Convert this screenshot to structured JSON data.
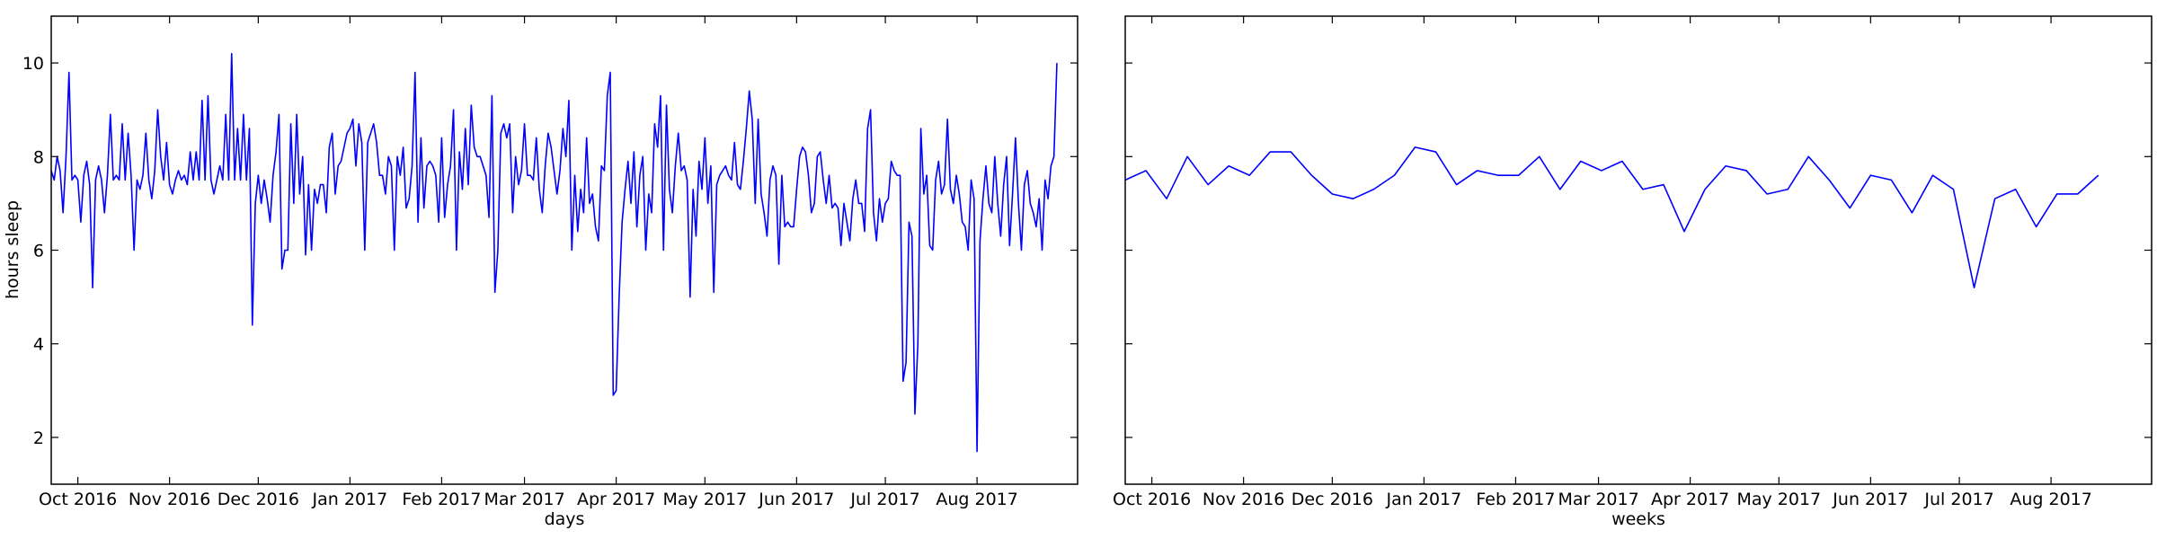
{
  "chart_data": [
    {
      "type": "line",
      "title": "",
      "xlabel": "days",
      "ylabel": "hours sleep",
      "ylim": [
        1,
        11
      ],
      "xlim": [
        "2016-09-22",
        "2017-09-04"
      ],
      "grid": false,
      "legend": "none",
      "color": "#0000ff",
      "x_tick_labels": [
        {
          "date": "2016-10-01",
          "label": "Oct 2016"
        },
        {
          "date": "2016-11-01",
          "label": "Nov 2016"
        },
        {
          "date": "2016-12-01",
          "label": "Dec 2016"
        },
        {
          "date": "2017-01-01",
          "label": "Jan 2017"
        },
        {
          "date": "2017-02-01",
          "label": "Feb 2017"
        },
        {
          "date": "2017-03-01",
          "label": "Mar 2017"
        },
        {
          "date": "2017-04-01",
          "label": "Apr 2017"
        },
        {
          "date": "2017-05-01",
          "label": "May 2017"
        },
        {
          "date": "2017-06-01",
          "label": "Jun 2017"
        },
        {
          "date": "2017-07-01",
          "label": "Jul 2017"
        },
        {
          "date": "2017-08-01",
          "label": "Aug 2017"
        }
      ],
      "y_ticks": [
        {
          "value": 2,
          "label": "2"
        },
        {
          "value": 4,
          "label": "4"
        },
        {
          "value": 6,
          "label": "6"
        },
        {
          "value": 8,
          "label": "8"
        },
        {
          "value": 10,
          "label": "10"
        }
      ],
      "series": [
        {
          "start": "2016-09-22",
          "values": [
            7.7,
            7.5,
            8.0,
            7.7,
            6.8,
            8.0,
            9.8,
            7.5,
            7.6,
            7.5,
            6.6,
            7.6,
            7.9,
            7.4,
            5.2,
            7.5,
            7.8,
            7.5,
            6.8,
            7.6,
            8.9,
            7.5,
            7.6,
            7.5,
            8.7,
            7.5,
            8.5,
            7.6,
            6.0,
            7.5,
            7.3,
            7.6,
            8.5,
            7.5,
            7.1,
            7.7,
            9.0,
            8.0,
            7.5,
            8.3,
            7.4,
            7.2,
            7.5,
            7.7,
            7.5,
            7.6,
            7.4,
            8.1,
            7.5,
            8.1,
            7.5,
            9.2,
            7.5,
            9.3,
            7.5,
            7.2,
            7.5,
            7.8,
            7.5,
            8.9,
            7.5,
            10.2,
            7.5,
            8.6,
            7.5,
            8.9,
            7.5,
            8.6,
            4.4,
            7.0,
            7.6,
            7.0,
            7.5,
            7.1,
            6.6,
            7.6,
            8.1,
            8.9,
            5.6,
            6.0,
            6.0,
            8.7,
            7.0,
            8.9,
            7.2,
            8.0,
            5.9,
            7.4,
            6.0,
            7.3,
            7.0,
            7.4,
            7.4,
            6.8,
            8.2,
            8.5,
            7.2,
            7.8,
            7.9,
            8.2,
            8.5,
            8.6,
            8.8,
            7.8,
            8.7,
            8.3,
            6.0,
            8.3,
            8.5,
            8.7,
            8.3,
            7.6,
            7.6,
            7.2,
            8.0,
            7.8,
            6.0,
            8.0,
            7.6,
            8.2,
            6.9,
            7.1,
            7.8,
            9.8,
            6.6,
            8.4,
            6.9,
            7.8,
            7.9,
            7.8,
            7.6,
            6.6,
            8.4,
            6.7,
            7.4,
            7.8,
            9.0,
            6.0,
            8.1,
            7.3,
            8.6,
            7.4,
            9.1,
            8.2,
            8.0,
            8.0,
            7.8,
            7.6,
            6.7,
            9.3,
            5.1,
            6.0,
            8.5,
            8.7,
            8.4,
            8.7,
            6.8,
            8.0,
            7.4,
            7.7,
            8.7,
            7.6,
            7.6,
            7.5,
            8.4,
            7.3,
            6.8,
            7.8,
            8.5,
            8.2,
            7.7,
            7.2,
            7.7,
            8.6,
            8.0,
            9.2,
            6.0,
            7.6,
            6.4,
            7.3,
            6.8,
            8.4,
            7.0,
            7.2,
            6.5,
            6.2,
            7.8,
            7.7,
            9.3,
            9.8,
            2.9,
            3.0,
            5.0,
            6.6,
            7.3,
            7.9,
            7.0,
            8.1,
            6.5,
            7.6,
            8.0,
            6.0,
            7.2,
            6.8,
            8.7,
            8.2,
            9.3,
            6.0,
            9.1,
            7.3,
            6.8,
            7.8,
            8.5,
            7.7,
            7.8,
            7.5,
            5.0,
            7.3,
            6.3,
            7.9,
            7.3,
            8.4,
            7.0,
            7.8,
            5.1,
            7.4,
            7.6,
            7.7,
            7.8,
            7.6,
            7.5,
            8.3,
            7.4,
            7.3,
            7.9,
            8.6,
            9.4,
            8.8,
            7.0,
            8.8,
            7.2,
            6.8,
            6.3,
            7.5,
            7.8,
            7.6,
            5.7,
            7.6,
            6.5,
            6.6,
            6.5,
            6.5,
            7.3,
            8.0,
            8.2,
            8.1,
            7.6,
            6.8,
            7.0,
            8.0,
            8.1,
            7.5,
            7.0,
            7.6,
            6.9,
            7.0,
            6.9,
            6.1,
            7.0,
            6.6,
            6.2,
            7.1,
            7.5,
            7.0,
            7.0,
            6.4,
            8.6,
            9.0,
            6.8,
            6.2,
            7.1,
            6.6,
            7.0,
            7.1,
            7.9,
            7.7,
            7.6,
            7.6,
            3.2,
            3.6,
            6.6,
            6.3,
            2.5,
            4.0,
            8.6,
            7.2,
            7.6,
            6.1,
            6.0,
            7.5,
            7.9,
            7.2,
            7.4,
            8.8,
            7.3,
            7.0,
            7.6,
            7.2,
            6.6,
            6.5,
            6.0,
            7.5,
            7.1,
            1.7,
            6.2,
            7.1,
            7.8,
            7.0,
            6.8,
            8.0,
            7.0,
            6.3,
            7.4,
            8.0,
            6.1,
            7.2,
            8.4,
            7.0,
            6.0,
            7.4,
            7.7,
            7.0,
            6.8,
            6.5,
            7.1,
            6.0,
            7.5,
            7.1,
            7.8,
            8.0,
            10.0
          ]
        }
      ]
    },
    {
      "type": "line",
      "title": "",
      "xlabel": "weeks",
      "ylabel": "",
      "ylim": [
        1,
        11
      ],
      "xlim": [
        "2016-09-22",
        "2017-09-04"
      ],
      "grid": false,
      "legend": "none",
      "color": "#0000ff",
      "x_tick_labels": [
        {
          "date": "2016-10-01",
          "label": "Oct 2016"
        },
        {
          "date": "2016-11-01",
          "label": "Nov 2016"
        },
        {
          "date": "2016-12-01",
          "label": "Dec 2016"
        },
        {
          "date": "2017-01-01",
          "label": "Jan 2017"
        },
        {
          "date": "2017-02-01",
          "label": "Feb 2017"
        },
        {
          "date": "2017-03-01",
          "label": "Mar 2017"
        },
        {
          "date": "2017-04-01",
          "label": "Apr 2017"
        },
        {
          "date": "2017-05-01",
          "label": "May 2017"
        },
        {
          "date": "2017-06-01",
          "label": "Jun 2017"
        },
        {
          "date": "2017-07-01",
          "label": "Jul 2017"
        },
        {
          "date": "2017-08-01",
          "label": "Aug 2017"
        }
      ],
      "y_ticks": [
        {
          "value": 2
        },
        {
          "value": 4
        },
        {
          "value": 6
        },
        {
          "value": 8
        },
        {
          "value": 10
        }
      ],
      "series": [
        {
          "start": "2016-09-22",
          "step_days": 7,
          "values": [
            7.5,
            7.7,
            7.1,
            8.0,
            7.4,
            7.8,
            7.6,
            8.1,
            8.1,
            7.6,
            7.2,
            7.1,
            7.3,
            7.6,
            8.2,
            8.1,
            7.4,
            7.7,
            7.6,
            7.6,
            8.0,
            7.3,
            7.9,
            7.7,
            7.9,
            7.3,
            7.4,
            6.4,
            7.3,
            7.8,
            7.7,
            7.2,
            7.3,
            8.0,
            7.5,
            6.9,
            7.6,
            7.5,
            6.8,
            7.6,
            7.3,
            5.2,
            7.1,
            7.3,
            6.5,
            7.2,
            7.2,
            7.6
          ]
        }
      ]
    }
  ]
}
